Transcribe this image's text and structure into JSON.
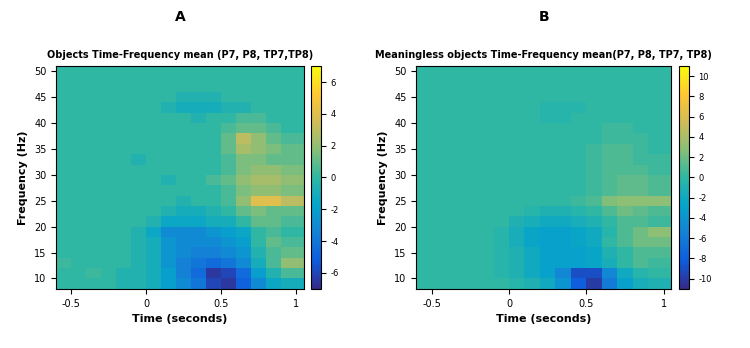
{
  "chart_data": [
    {
      "type": "heatmap",
      "annotation": "A",
      "title": "Objects Time-Frequency mean (P7, P8, TP7,TP8)",
      "x_label": "Time (seconds)",
      "y_label": "Frequency (Hz)",
      "color": "parula",
      "xlim": [
        -0.6,
        1.05
      ],
      "xticks": [
        -0.5,
        0,
        0.5,
        1
      ],
      "ylim": [
        8,
        51
      ],
      "yticks": [
        10,
        15,
        20,
        25,
        30,
        35,
        40,
        45,
        50
      ],
      "x": [
        -0.55,
        -0.45,
        -0.35,
        -0.25,
        -0.15,
        -0.05,
        0.05,
        0.15,
        0.25,
        0.35,
        0.45,
        0.55,
        0.65,
        0.75,
        0.85,
        0.95,
        1.05
      ],
      "y": [
        9,
        11,
        13,
        15,
        17,
        19,
        21,
        23,
        25,
        27,
        29,
        31,
        33,
        35,
        37,
        39,
        41,
        43,
        45,
        47,
        49,
        51
      ],
      "values": [
        [
          0,
          0,
          0,
          0,
          -0.5,
          -0.5,
          -1,
          -2,
          -3,
          -4,
          -6,
          -6.5,
          -5,
          -3,
          -1.5,
          -1,
          -1
        ],
        [
          0,
          0,
          0.3,
          0,
          -0.5,
          -0.5,
          -1,
          -2,
          -3.5,
          -4.5,
          -6.5,
          -6,
          -4.5,
          -2,
          -0.5,
          0.5,
          0.5
        ],
        [
          0.3,
          0,
          0,
          0,
          0,
          -0.5,
          -1,
          -2.5,
          -3.5,
          -4,
          -4.5,
          -4,
          -3,
          -1,
          0.5,
          2,
          2
        ],
        [
          0,
          0,
          0,
          0,
          0,
          -0.5,
          -1,
          -2.5,
          -3,
          -3.5,
          -3.5,
          -3,
          -2.5,
          -0.5,
          0.5,
          1,
          1
        ],
        [
          0,
          0,
          0,
          0,
          0,
          -0.5,
          -1,
          -2.5,
          -3,
          -3,
          -3,
          -2.5,
          -2,
          0,
          1,
          0.5,
          0.5
        ],
        [
          0,
          0,
          0,
          0,
          0,
          -0.5,
          -1.5,
          -3,
          -3,
          -3,
          -2.5,
          -2,
          -1.5,
          0,
          0.5,
          0,
          0
        ],
        [
          0,
          0,
          0,
          0,
          0,
          0,
          -0.5,
          -1.5,
          -1.5,
          -1.5,
          -1,
          -1,
          0,
          1,
          1,
          0.5,
          0.5
        ],
        [
          0,
          0,
          0,
          0,
          0,
          0,
          0,
          -0.5,
          -1,
          -1,
          -0.5,
          0,
          1,
          1.5,
          1,
          1,
          1
        ],
        [
          0,
          0,
          0,
          0,
          0,
          0,
          0,
          0,
          -0.5,
          0,
          0,
          0.5,
          2,
          4,
          4,
          3,
          3
        ],
        [
          0,
          0,
          0,
          0,
          0,
          0,
          0,
          0,
          0,
          0,
          0,
          0.5,
          1.5,
          2,
          2,
          1.5,
          1.5
        ],
        [
          0,
          0,
          0,
          0,
          0,
          0,
          0,
          -0.5,
          0,
          0,
          0.5,
          1,
          2,
          2.5,
          2.5,
          2,
          2
        ],
        [
          0,
          0,
          0,
          0,
          0,
          0,
          0,
          0,
          0,
          0,
          0,
          0.5,
          1.5,
          2,
          2,
          1.5,
          1.5
        ],
        [
          0,
          0,
          0,
          0,
          0,
          -0.5,
          0,
          0,
          0,
          0,
          0,
          0.5,
          1.5,
          1.5,
          1,
          1,
          1
        ],
        [
          0,
          0,
          0,
          0,
          0,
          0,
          0,
          0,
          0,
          0,
          0,
          1,
          2.5,
          2,
          1.5,
          1,
          1
        ],
        [
          0,
          0,
          0,
          0,
          0,
          0,
          0,
          0,
          0,
          0,
          0,
          1,
          3,
          2,
          1,
          0.5,
          0.5
        ],
        [
          0,
          0,
          0,
          0,
          0,
          0,
          0,
          0,
          0,
          0,
          0,
          0.5,
          1,
          1,
          0.5,
          0,
          0
        ],
        [
          0,
          0,
          0,
          0,
          0,
          0,
          0,
          0,
          0,
          -0.5,
          0,
          0,
          0.5,
          0.5,
          0,
          0,
          0
        ],
        [
          0,
          0,
          0,
          0,
          0,
          0,
          0,
          -0.5,
          -1,
          -1,
          -1,
          -0.5,
          -0.5,
          0,
          0,
          0,
          0
        ],
        [
          0,
          0,
          0,
          0,
          0,
          0,
          0,
          0,
          -0.5,
          -0.5,
          -0.5,
          0,
          0,
          0,
          0,
          0,
          0
        ],
        [
          0,
          0,
          0,
          0,
          0,
          0,
          0,
          0,
          0,
          0,
          0,
          0,
          0,
          0,
          0,
          0,
          0
        ],
        [
          0,
          0,
          0,
          0,
          0,
          0,
          0,
          0,
          0,
          0,
          0,
          0,
          0,
          0,
          0,
          0,
          0
        ],
        [
          0,
          0,
          0,
          0,
          0,
          0,
          0,
          0,
          0,
          0,
          0,
          0,
          0,
          0,
          0,
          0,
          0
        ]
      ],
      "colorbar": {
        "range": [
          -7,
          7
        ],
        "ticks": [
          -6,
          -4,
          -2,
          0,
          2,
          4,
          6
        ]
      }
    },
    {
      "type": "heatmap",
      "annotation": "B",
      "title": "Meaningless objects Time-Frequency mean(P7, P8, TP7, TP8)",
      "x_label": "Time (seconds)",
      "y_label": "Frequency (Hz)",
      "color": "parula",
      "xlim": [
        -0.6,
        1.05
      ],
      "xticks": [
        -0.5,
        0,
        0.5,
        1
      ],
      "ylim": [
        8,
        51
      ],
      "yticks": [
        10,
        15,
        20,
        25,
        30,
        35,
        40,
        45,
        50
      ],
      "x": [
        -0.55,
        -0.45,
        -0.35,
        -0.25,
        -0.15,
        -0.05,
        0.05,
        0.15,
        0.25,
        0.35,
        0.45,
        0.55,
        0.65,
        0.75,
        0.85,
        0.95,
        1.05
      ],
      "y": [
        9,
        11,
        13,
        15,
        17,
        19,
        21,
        23,
        25,
        27,
        29,
        31,
        33,
        35,
        37,
        39,
        41,
        43,
        45,
        47,
        49,
        51
      ],
      "values": [
        [
          0,
          0,
          0,
          0,
          0,
          0,
          -0.5,
          -1,
          -2,
          -4,
          -8,
          -10,
          -6,
          -3,
          -1.5,
          -1,
          -1
        ],
        [
          0,
          0,
          0,
          0,
          0,
          -0.5,
          -1,
          -2,
          -3,
          -5,
          -9,
          -9,
          -5,
          -2,
          -0.5,
          0,
          0
        ],
        [
          0,
          0,
          0,
          0,
          0,
          -0.5,
          -1,
          -2,
          -3,
          -3,
          -3,
          -2.5,
          -1.5,
          0,
          1,
          0.5,
          0.5
        ],
        [
          0,
          0,
          0,
          0,
          0,
          -0.5,
          -1,
          -2,
          -3,
          -3,
          -3,
          -2.5,
          -1,
          0,
          1,
          1,
          1
        ],
        [
          0,
          0,
          0,
          0,
          0,
          -0.5,
          -1.5,
          -2.5,
          -3,
          -3,
          -2.5,
          -2,
          0,
          1,
          2,
          2,
          2
        ],
        [
          0,
          0,
          0,
          0,
          0,
          -0.5,
          -1.5,
          -2.5,
          -3,
          -3,
          -2.5,
          -2,
          -0.5,
          1,
          2,
          3,
          3
        ],
        [
          0,
          0,
          0,
          0,
          0,
          0,
          -1,
          -1.5,
          -2,
          -2,
          -1.5,
          -1,
          0,
          1,
          1,
          0.5,
          0.5
        ],
        [
          0,
          0,
          0,
          0,
          0,
          0,
          0,
          -0.5,
          -1,
          -1,
          -0.5,
          0,
          1,
          2,
          1.5,
          1,
          1
        ],
        [
          0,
          0,
          0,
          0,
          0,
          0,
          0,
          0,
          0,
          0,
          0.5,
          1,
          2.5,
          3,
          3,
          3,
          3
        ],
        [
          0,
          0,
          0,
          0,
          0,
          0,
          0,
          0,
          0,
          0,
          0,
          0.5,
          1,
          1.5,
          1.5,
          1,
          1
        ],
        [
          0,
          0,
          0,
          0,
          0,
          0,
          0,
          0,
          0,
          0,
          0,
          0.5,
          1,
          1.5,
          1.5,
          1,
          1
        ],
        [
          0,
          0,
          0,
          0,
          0,
          0,
          0,
          0,
          0,
          0,
          0,
          0.5,
          1,
          1,
          1,
          0.5,
          0.5
        ],
        [
          0,
          0,
          0,
          0,
          0,
          0,
          0,
          0,
          0,
          0,
          0,
          0.5,
          1,
          1,
          0.5,
          0.5,
          0.5
        ],
        [
          0,
          0,
          0,
          0,
          0,
          0,
          0,
          0,
          0,
          0,
          0,
          0.5,
          1,
          1,
          0.5,
          0,
          0
        ],
        [
          0,
          0,
          0,
          0,
          0,
          0,
          0,
          0,
          0,
          0,
          0,
          0,
          0.5,
          0.5,
          0.5,
          0,
          0
        ],
        [
          0,
          0,
          0,
          0,
          0,
          0,
          0,
          0,
          0,
          0,
          0,
          0,
          0.5,
          0.5,
          0,
          0,
          0
        ],
        [
          0,
          0,
          0,
          0,
          0,
          0,
          0,
          0,
          -0.5,
          -0.5,
          0,
          0,
          0,
          0,
          0,
          0,
          0
        ],
        [
          0,
          0,
          0,
          0,
          0,
          0,
          0,
          0,
          -0.5,
          -0.5,
          -0.5,
          0,
          0,
          0,
          0,
          0,
          0
        ],
        [
          0,
          0,
          0,
          0,
          0,
          0,
          0,
          0,
          0,
          0,
          0,
          0,
          0,
          0,
          0,
          0,
          0
        ],
        [
          0,
          0,
          0,
          0,
          0,
          0,
          0,
          0,
          0,
          0,
          0,
          0,
          0,
          0,
          0,
          0,
          0
        ],
        [
          0,
          0,
          0,
          0,
          0,
          0,
          0,
          0,
          0,
          0,
          0,
          0,
          0,
          0,
          0,
          0,
          0
        ],
        [
          0,
          0,
          0,
          0,
          0,
          0,
          0,
          0,
          0,
          0,
          0,
          0,
          0,
          0,
          0,
          0,
          0
        ]
      ],
      "colorbar": {
        "range": [
          -11,
          11
        ],
        "ticks": [
          -10,
          -8,
          -6,
          -4,
          -2,
          0,
          2,
          4,
          6,
          8,
          10
        ]
      }
    }
  ]
}
